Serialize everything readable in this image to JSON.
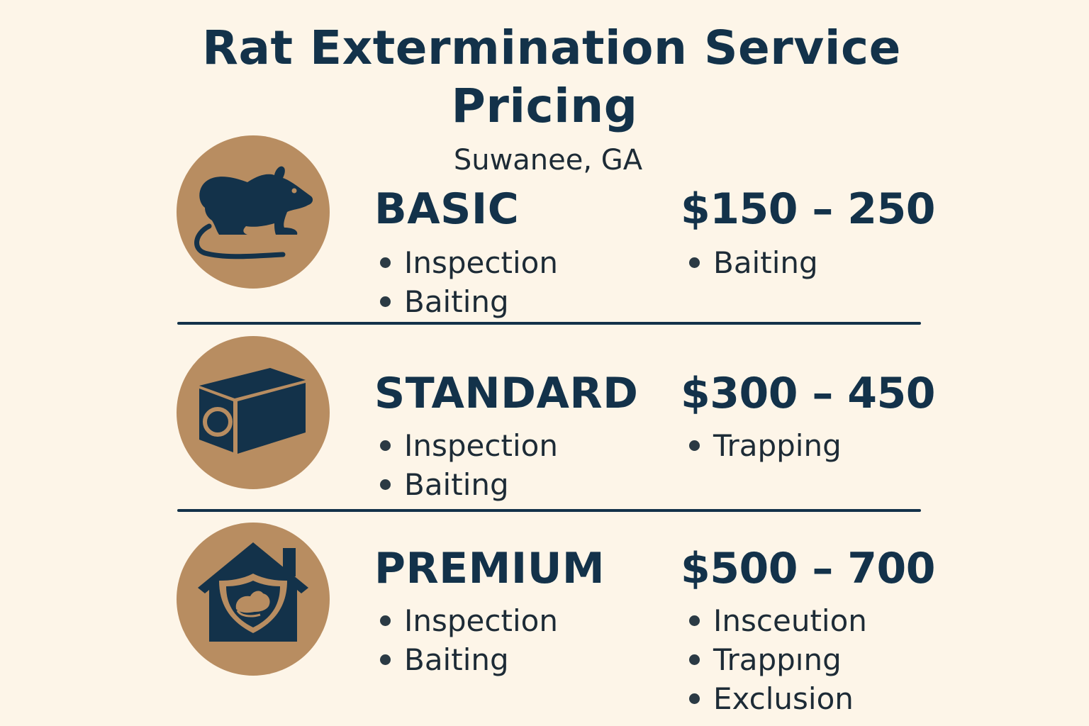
{
  "header": {
    "title_line1": "Rat Extermination Service",
    "title_line2": "Pricing",
    "location": "Suwanee, GA"
  },
  "colors": {
    "background": "#fdf5e8",
    "primary": "#13324a",
    "icon_circle": "#b88d61"
  },
  "tiers": [
    {
      "name": "BASIC",
      "price": "$150 – 250",
      "icon": "rat-icon",
      "included": [
        "Inspection",
        "Baiting"
      ],
      "extras": [
        "Baiting"
      ]
    },
    {
      "name": "STANDARD",
      "price": "$300 – 450",
      "icon": "trap-box-icon",
      "included": [
        "Inspection",
        "Baiting"
      ],
      "extras": [
        "Trapping"
      ]
    },
    {
      "name": "PREMIUM",
      "price": "$500 – 700",
      "icon": "house-shield-icon",
      "included": [
        "Inspection",
        "Baiting"
      ],
      "extras": [
        "Insceution",
        "Trappıng",
        "Exclusion"
      ]
    }
  ]
}
